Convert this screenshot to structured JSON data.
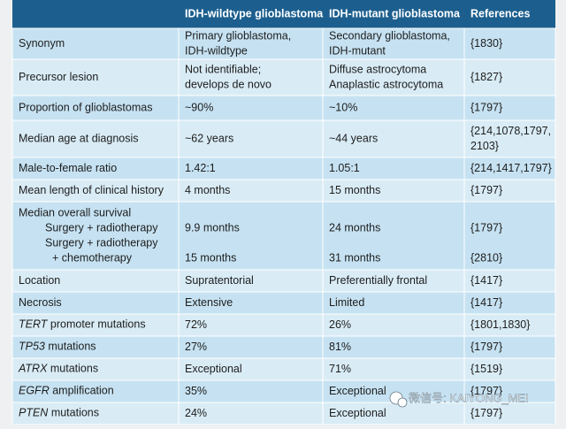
{
  "table": {
    "header": [
      "IDH-wildtype glioblastoma",
      "IDH-mutant glioblastoma",
      "References"
    ],
    "rows": [
      {
        "label": [
          "Synonym"
        ],
        "wt": [
          "Primary glioblastoma,",
          "IDH-wildtype"
        ],
        "mut": [
          "Secondary glioblastoma,",
          "IDH-mutant"
        ],
        "ref": [
          "{1830}"
        ]
      },
      {
        "label": [
          "Precursor lesion"
        ],
        "wt": [
          "Not identifiable;",
          "develops de novo"
        ],
        "mut": [
          "Diffuse astrocytoma",
          "Anaplastic astrocytoma"
        ],
        "ref": [
          "{1827}"
        ]
      },
      {
        "label": [
          "Proportion of glioblastomas"
        ],
        "wt": [
          "~90%"
        ],
        "mut": [
          "~10%"
        ],
        "ref": [
          "{1797}"
        ]
      },
      {
        "label": [
          "Median age at diagnosis"
        ],
        "wt": [
          "~62 years"
        ],
        "mut": [
          "~44 years"
        ],
        "ref": [
          "{214,1078,1797,",
          "2103}"
        ]
      },
      {
        "label": [
          "Male-to-female ratio"
        ],
        "wt": [
          "1.42:1"
        ],
        "mut": [
          "1.05:1"
        ],
        "ref": [
          "{214,1417,1797}"
        ]
      },
      {
        "label": [
          "Mean length of clinical history"
        ],
        "wt": [
          "4 months"
        ],
        "mut": [
          "15 months"
        ],
        "ref": [
          "{1797}"
        ]
      },
      {
        "label": [
          "Median overall survival",
          "Surgery + radiotherapy",
          "Surgery + radiotherapy",
          "+ chemotherapy"
        ],
        "wt": [
          null,
          "9.9 months",
          null,
          "15 months"
        ],
        "mut": [
          null,
          "24 months",
          null,
          "31 months"
        ],
        "ref": [
          null,
          "{1797}",
          null,
          "{2810}"
        ]
      },
      {
        "label": [
          "Location"
        ],
        "wt": [
          "Supratentorial"
        ],
        "mut": [
          "Preferentially frontal"
        ],
        "ref": [
          "{1417}"
        ]
      },
      {
        "label": [
          "Necrosis"
        ],
        "wt": [
          "Extensive"
        ],
        "mut": [
          "Limited"
        ],
        "ref": [
          "{1417}"
        ]
      },
      {
        "gene": "TERT",
        "label": [
          " promoter mutations"
        ],
        "wt": [
          "72%"
        ],
        "mut": [
          "26%"
        ],
        "ref": [
          "{1801,1830}"
        ]
      },
      {
        "gene": "TP53",
        "label": [
          " mutations"
        ],
        "wt": [
          "27%"
        ],
        "mut": [
          "81%"
        ],
        "ref": [
          "{1797}"
        ]
      },
      {
        "gene": "ATRX",
        "label": [
          " mutations"
        ],
        "wt": [
          "Exceptional"
        ],
        "mut": [
          "71%"
        ],
        "ref": [
          "{1519}"
        ]
      },
      {
        "gene": "EGFR",
        "label": [
          " amplification"
        ],
        "wt": [
          "35%"
        ],
        "mut": [
          "Exceptional"
        ],
        "ref": [
          "{1797}"
        ]
      },
      {
        "gene": "PTEN",
        "label": [
          " mutations"
        ],
        "wt": [
          "24%"
        ],
        "mut": [
          "Exceptional"
        ],
        "ref": [
          "{1797}"
        ]
      }
    ]
  },
  "watermark": "微信号: KAIYONG_MEI"
}
